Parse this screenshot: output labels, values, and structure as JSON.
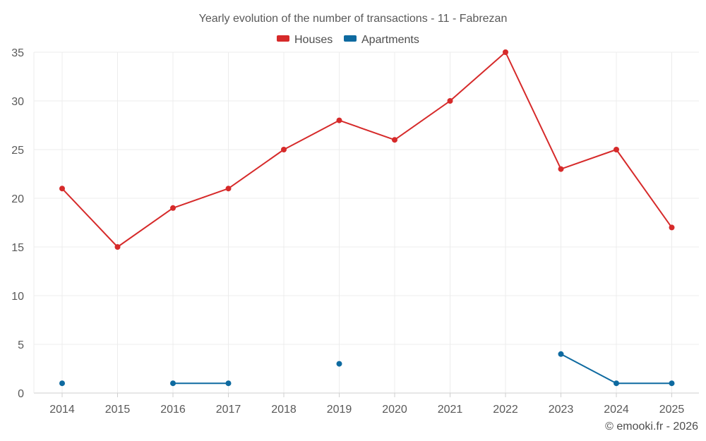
{
  "chart_data": {
    "type": "line",
    "title": "Yearly evolution of the number of transactions - 11 - Fabrezan",
    "xlabel": "",
    "ylabel": "",
    "categories": [
      "2014",
      "2015",
      "2016",
      "2017",
      "2018",
      "2019",
      "2020",
      "2021",
      "2022",
      "2023",
      "2024",
      "2025"
    ],
    "ylim": [
      0,
      35
    ],
    "yticks": [
      0,
      5,
      10,
      15,
      20,
      25,
      30,
      35
    ],
    "grid": true,
    "legend_position": "top-center",
    "series": [
      {
        "name": "Houses",
        "color": "#d62a2a",
        "values": [
          21,
          15,
          19,
          21,
          25,
          28,
          26,
          30,
          35,
          23,
          25,
          17
        ]
      },
      {
        "name": "Apartments",
        "color": "#0e6aa0",
        "values": [
          1,
          null,
          1,
          1,
          null,
          3,
          null,
          null,
          null,
          4,
          1,
          1
        ]
      }
    ],
    "footer": "© emooki.fr - 2026"
  }
}
